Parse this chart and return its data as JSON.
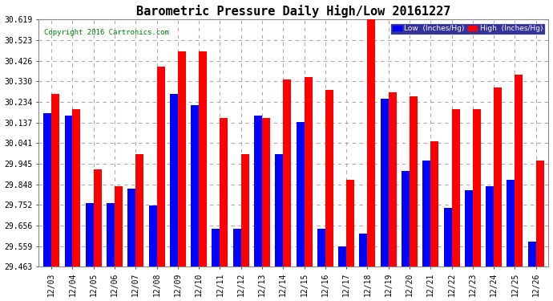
{
  "title": "Barometric Pressure Daily High/Low 20161227",
  "copyright": "Copyright 2016 Cartronics.com",
  "dates": [
    "12/03",
    "12/04",
    "12/05",
    "12/06",
    "12/07",
    "12/08",
    "12/09",
    "12/10",
    "12/11",
    "12/12",
    "12/13",
    "12/14",
    "12/15",
    "12/16",
    "12/17",
    "12/18",
    "12/19",
    "12/20",
    "12/21",
    "12/22",
    "12/23",
    "12/24",
    "12/25",
    "12/26"
  ],
  "high_values": [
    30.27,
    30.2,
    29.92,
    29.84,
    29.99,
    30.4,
    30.47,
    30.47,
    30.16,
    29.99,
    30.16,
    30.34,
    30.35,
    30.29,
    29.87,
    30.62,
    30.28,
    30.26,
    30.05,
    30.2,
    30.2,
    30.3,
    30.36,
    29.96
  ],
  "low_values": [
    30.18,
    30.17,
    29.76,
    29.76,
    29.83,
    29.75,
    30.27,
    30.22,
    29.64,
    29.64,
    30.17,
    29.99,
    30.14,
    29.64,
    29.56,
    29.62,
    30.25,
    29.91,
    29.96,
    29.74,
    29.82,
    29.84,
    29.87,
    29.58
  ],
  "ylim_min": 29.463,
  "ylim_max": 30.619,
  "yticks": [
    29.463,
    29.559,
    29.656,
    29.752,
    29.848,
    29.945,
    30.041,
    30.137,
    30.234,
    30.33,
    30.426,
    30.523,
    30.619
  ],
  "bar_width": 0.38,
  "high_color": "#FF0000",
  "low_color": "#0000FF",
  "bg_color": "#FFFFFF",
  "grid_color": "#AAAAAA",
  "title_fontsize": 11,
  "tick_fontsize": 7
}
